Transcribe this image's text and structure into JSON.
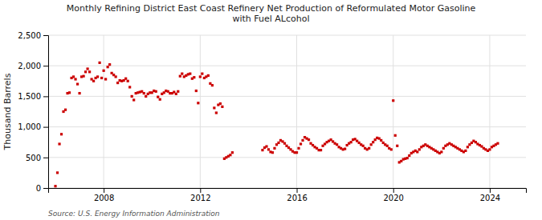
{
  "chart_data": {
    "type": "scatter",
    "title": "Monthly Refining District East Coast Refinery Net Production of Reformulated Motor Gasoline\nwith Fuel ALcohol",
    "ylabel": "Thousand Barrels",
    "source": "Source: U.S. Energy Information Administration",
    "color": "#cc0000",
    "marker": "square",
    "grid": true,
    "xlim": [
      2005.7,
      2025.5
    ],
    "xticks": [
      2008,
      2012,
      2016,
      2020,
      2024
    ],
    "ylim": [
      0,
      2500
    ],
    "yticks": [
      0,
      500,
      {
        "value": 1000,
        "label": "1,000"
      },
      {
        "value": 1500,
        "label": "1,500"
      },
      {
        "value": 2000,
        "label": "2,000"
      },
      {
        "value": 2500,
        "label": "2,500"
      }
    ],
    "x": [
      2006.0,
      2006.083,
      2006.167,
      2006.25,
      2006.333,
      2006.417,
      2006.5,
      2006.583,
      2006.667,
      2006.75,
      2006.833,
      2006.917,
      2007.0,
      2007.083,
      2007.167,
      2007.25,
      2007.333,
      2007.417,
      2007.5,
      2007.583,
      2007.667,
      2007.75,
      2007.833,
      2007.917,
      2008.0,
      2008.083,
      2008.167,
      2008.25,
      2008.333,
      2008.417,
      2008.5,
      2008.583,
      2008.667,
      2008.75,
      2008.833,
      2008.917,
      2009.0,
      2009.083,
      2009.167,
      2009.25,
      2009.333,
      2009.417,
      2009.5,
      2009.583,
      2009.667,
      2009.75,
      2009.833,
      2009.917,
      2010.0,
      2010.083,
      2010.167,
      2010.25,
      2010.333,
      2010.417,
      2010.5,
      2010.583,
      2010.667,
      2010.75,
      2010.833,
      2010.917,
      2011.0,
      2011.083,
      2011.167,
      2011.25,
      2011.333,
      2011.417,
      2011.5,
      2011.583,
      2011.667,
      2011.75,
      2011.833,
      2011.917,
      2012.0,
      2012.083,
      2012.167,
      2012.25,
      2012.333,
      2012.417,
      2012.5,
      2012.583,
      2012.667,
      2012.75,
      2012.833,
      2012.917,
      2013.0,
      2013.083,
      2013.167,
      2013.25,
      2013.333,
      2014.583,
      2014.667,
      2014.75,
      2014.833,
      2014.917,
      2015.0,
      2015.083,
      2015.167,
      2015.25,
      2015.333,
      2015.417,
      2015.5,
      2015.583,
      2015.667,
      2015.75,
      2015.833,
      2015.917,
      2016.0,
      2016.083,
      2016.167,
      2016.25,
      2016.333,
      2016.417,
      2016.5,
      2016.583,
      2016.667,
      2016.75,
      2016.833,
      2016.917,
      2017.0,
      2017.083,
      2017.167,
      2017.25,
      2017.333,
      2017.417,
      2017.5,
      2017.583,
      2017.667,
      2017.75,
      2017.833,
      2017.917,
      2018.0,
      2018.083,
      2018.167,
      2018.25,
      2018.333,
      2018.417,
      2018.5,
      2018.583,
      2018.667,
      2018.75,
      2018.833,
      2018.917,
      2019.0,
      2019.083,
      2019.167,
      2019.25,
      2019.333,
      2019.417,
      2019.5,
      2019.583,
      2019.667,
      2019.75,
      2019.833,
      2019.917,
      2020.0,
      2020.083,
      2020.167,
      2020.25,
      2020.333,
      2020.417,
      2020.5,
      2020.583,
      2020.667,
      2020.75,
      2020.833,
      2020.917,
      2021.0,
      2021.083,
      2021.167,
      2021.25,
      2021.333,
      2021.417,
      2021.5,
      2021.583,
      2021.667,
      2021.75,
      2021.833,
      2021.917,
      2022.0,
      2022.083,
      2022.167,
      2022.25,
      2022.333,
      2022.417,
      2022.5,
      2022.583,
      2022.667,
      2022.75,
      2022.833,
      2022.917,
      2023.0,
      2023.083,
      2023.167,
      2023.25,
      2023.333,
      2023.417,
      2023.5,
      2023.583,
      2023.667,
      2023.75,
      2023.833,
      2023.917,
      2024.0,
      2024.083,
      2024.167,
      2024.25,
      2024.333
    ],
    "values": [
      30,
      250,
      720,
      880,
      1250,
      1280,
      1550,
      1560,
      1800,
      1820,
      1780,
      1700,
      1550,
      1820,
      1830,
      1900,
      1950,
      1900,
      1780,
      1750,
      1800,
      1820,
      2050,
      1800,
      1920,
      1780,
      1980,
      2020,
      1880,
      1850,
      1820,
      1720,
      1760,
      1750,
      1760,
      1790,
      1750,
      1650,
      1500,
      1440,
      1550,
      1560,
      1570,
      1580,
      1550,
      1500,
      1540,
      1560,
      1560,
      1590,
      1580,
      1490,
      1450,
      1540,
      1560,
      1590,
      1580,
      1550,
      1550,
      1570,
      1540,
      1580,
      1830,
      1870,
      1820,
      1840,
      1860,
      1870,
      1790,
      1810,
      1590,
      1390,
      1820,
      1870,
      1800,
      1820,
      1840,
      1710,
      1680,
      1310,
      1230,
      1360,
      1380,
      1330,
      480,
      500,
      520,
      540,
      580,
      620,
      660,
      680,
      630,
      590,
      580,
      650,
      710,
      740,
      780,
      760,
      730,
      690,
      660,
      630,
      600,
      580,
      580,
      650,
      720,
      780,
      830,
      810,
      790,
      730,
      700,
      670,
      650,
      620,
      620,
      690,
      720,
      750,
      770,
      790,
      760,
      730,
      710,
      670,
      650,
      630,
      640,
      700,
      730,
      750,
      790,
      800,
      770,
      740,
      710,
      690,
      650,
      630,
      650,
      710,
      750,
      790,
      820,
      810,
      780,
      740,
      710,
      690,
      650,
      630,
      1430,
      860,
      690,
      420,
      440,
      470,
      480,
      490,
      530,
      570,
      590,
      610,
      590,
      630,
      670,
      690,
      710,
      690,
      670,
      650,
      630,
      610,
      590,
      570,
      590,
      650,
      690,
      710,
      730,
      710,
      690,
      670,
      650,
      630,
      610,
      590,
      610,
      670,
      710,
      740,
      770,
      750,
      720,
      700,
      680,
      650,
      630,
      610,
      630,
      670,
      690,
      710,
      730
    ]
  }
}
